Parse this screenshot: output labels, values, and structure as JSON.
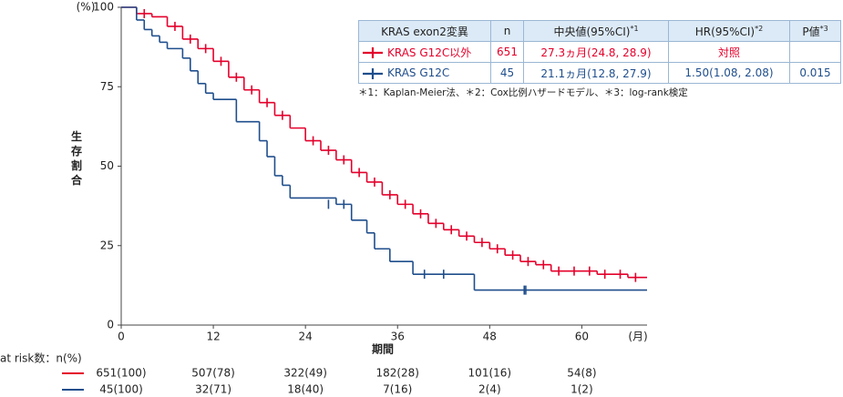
{
  "chart_data": {
    "type": "km",
    "ylabel": "生存割合",
    "yunit": "(%)",
    "xlabel": "期間",
    "xunit": "(月)",
    "xlim": [
      0,
      68.5
    ],
    "ylim": [
      0,
      100
    ],
    "xticks": [
      0,
      12,
      24,
      36,
      48,
      60
    ],
    "yticks": [
      0,
      25,
      50,
      75,
      100
    ],
    "series": [
      {
        "name": "KRAS G12C以外",
        "color": "#e4002b",
        "x": [
          0,
          2,
          4,
          6,
          8,
          10,
          12,
          14,
          16,
          18,
          20,
          22,
          24,
          26,
          28,
          30,
          32,
          34,
          36,
          38,
          40,
          42,
          44,
          46,
          48,
          50,
          52,
          54,
          56,
          62,
          66,
          68.5
        ],
        "values": [
          100,
          98,
          97,
          94,
          90,
          87,
          83,
          78,
          74,
          70,
          66,
          62,
          58,
          55,
          52,
          48,
          45,
          41,
          38,
          35,
          32,
          30,
          28,
          26,
          24,
          22,
          20,
          19,
          17,
          16,
          15,
          15
        ],
        "censor_x": [
          3,
          7,
          9,
          11,
          13,
          15,
          17,
          19,
          21,
          25,
          27,
          29,
          31,
          33,
          35,
          37,
          39,
          41,
          43,
          45,
          47,
          49,
          51,
          53,
          55,
          57,
          59,
          61,
          63,
          65,
          67
        ],
        "censor_values": [
          98,
          94,
          90,
          87,
          83,
          78,
          74,
          70,
          66,
          58,
          55,
          52,
          48,
          45,
          41,
          38,
          35,
          32,
          30,
          28,
          26,
          24,
          22,
          20,
          19,
          17,
          17,
          17,
          16,
          16,
          15
        ]
      },
      {
        "name": "KRAS G12C",
        "color": "#1f4e8c",
        "x": [
          0,
          2,
          3,
          4,
          5,
          6,
          8,
          9,
          10,
          11,
          12,
          15,
          18,
          19,
          20,
          21,
          22,
          28,
          30,
          32,
          33,
          35,
          38,
          46,
          68.5
        ],
        "values": [
          100,
          96,
          93,
          91,
          89,
          87,
          84,
          80,
          76,
          73,
          71,
          64,
          58,
          53,
          47,
          44,
          40,
          38,
          33,
          29,
          24,
          20,
          16,
          11,
          11
        ],
        "censor_x": [
          27,
          29,
          39.5,
          42,
          52.5,
          52.7
        ],
        "censor_values": [
          38,
          38,
          16,
          16,
          11,
          11
        ]
      }
    ],
    "table": {
      "columns": [
        "KRAS exon2変異",
        "n",
        "中央値(95%CI)",
        "HR(95%CI)",
        "P値"
      ],
      "column_notes": [
        null,
        null,
        "*1",
        "*2",
        "*3"
      ],
      "rows": [
        [
          "651",
          "27.3ヵ月(24.8, 28.9)",
          "対照"
        ],
        [
          "45",
          "21.1ヵ月(12.8, 27.9)",
          "1.50(1.08, 2.08)",
          "0.015"
        ]
      ]
    },
    "footnote": "＊1：Kaplan-Meier法、＊2：Cox比例ハザードモデル、＊3：log-rank検定",
    "at_risk": {
      "label": "at risk数：n(%)",
      "rows": [
        [
          "651(100)",
          "507(78)",
          "322(49)",
          "182(28)",
          "101(16)",
          "54(8)"
        ],
        [
          "45(100)",
          "32(71)",
          "18(40)",
          "7(16)",
          "2(4)",
          "1(2)"
        ]
      ]
    }
  }
}
